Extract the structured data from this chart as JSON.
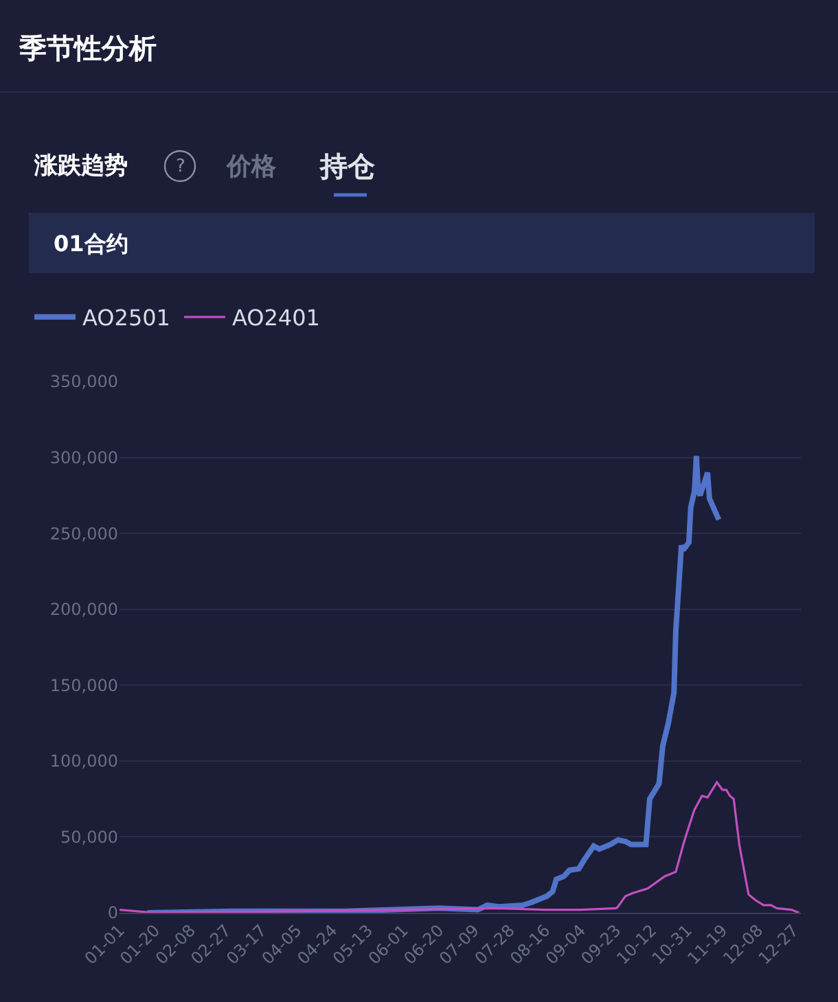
{
  "chart_data": {
    "type": "line",
    "title": "季节性分析",
    "annotations": [
      "涨跌趋势",
      "?",
      "价格",
      "持仓",
      "01合约"
    ],
    "xlim": [
      "--01-01",
      "--12-31"
    ],
    "xticks": [
      {
        "value": "--01-01",
        "label": "01-01"
      },
      {
        "value": "--01-20",
        "label": "01-20"
      },
      {
        "value": "--02-08",
        "label": "02-08"
      },
      {
        "value": "--02-27",
        "label": "02-27"
      },
      {
        "value": "--03-17",
        "label": "03-17"
      },
      {
        "value": "--04-05",
        "label": "04-05"
      },
      {
        "value": "--04-24",
        "label": "04-24"
      },
      {
        "value": "--05-13",
        "label": "05-13"
      },
      {
        "value": "--06-01",
        "label": "06-01"
      },
      {
        "value": "--06-20",
        "label": "06-20"
      },
      {
        "value": "--07-09",
        "label": "07-09"
      },
      {
        "value": "--07-28",
        "label": "07-28"
      },
      {
        "value": "--08-16",
        "label": "08-16"
      },
      {
        "value": "--09-04",
        "label": "09-04"
      },
      {
        "value": "--09-23",
        "label": "09-23"
      },
      {
        "value": "--10-12",
        "label": "10-12"
      },
      {
        "value": "--10-31",
        "label": "10-31"
      },
      {
        "value": "--11-19",
        "label": "11-19"
      },
      {
        "value": "--12-08",
        "label": "12-08"
      },
      {
        "value": "--12-27",
        "label": "12-27"
      }
    ],
    "ylim": [
      0,
      350000
    ],
    "yticks": [
      {
        "value": 0,
        "label": "0"
      },
      {
        "value": 50000,
        "label": "50,000"
      },
      {
        "value": 100000,
        "label": "100,000"
      },
      {
        "value": 150000,
        "label": "150,000"
      },
      {
        "value": 200000,
        "label": "200,000"
      },
      {
        "value": 250000,
        "label": "250,000"
      },
      {
        "value": 300000,
        "label": "300,000"
      },
      {
        "value": 350000,
        "label": "350,000"
      }
    ],
    "grid": "y",
    "legend": "top left",
    "marker": "none",
    "line_style": "solid",
    "series": [
      {
        "name": "AO2501",
        "color": "#5173c9",
        "x": [
          "--01-16",
          "--03-01",
          "--05-01",
          "--06-20",
          "--07-11",
          "--07-16",
          "--07-22",
          "--08-04",
          "--08-09",
          "--08-17",
          "--08-20",
          "--08-22",
          "--08-26",
          "--08-29",
          "--09-03",
          "--09-06",
          "--09-11",
          "--09-14",
          "--09-20",
          "--09-24",
          "--09-28",
          "--10-01",
          "--10-09",
          "--10-11",
          "--10-16",
          "--10-18",
          "--10-21",
          "--10-24",
          "--10-25",
          "--10-28",
          "--10-29",
          "--11-01",
          "--11-02",
          "--11-04",
          "--11-05",
          "--11-06",
          "--11-07",
          "--11-11",
          "--11-12",
          "--11-17"
        ],
        "values": [
          0,
          1000,
          1000,
          3000,
          2000,
          5000,
          4000,
          5000,
          7000,
          11000,
          14000,
          22000,
          24000,
          28000,
          29000,
          35000,
          44000,
          42000,
          45000,
          48000,
          47000,
          45000,
          45000,
          75000,
          85000,
          110000,
          125000,
          145000,
          186000,
          242000,
          239000,
          244000,
          267000,
          278000,
          301000,
          278000,
          275000,
          290000,
          273000,
          259000
        ]
      },
      {
        "name": "AO2401",
        "color": "#c24fc0",
        "x": [
          "--01-01",
          "--01-20",
          "--04-01",
          "--06-01",
          "--07-20",
          "--08-16",
          "--09-04",
          "--09-23",
          "--09-24",
          "--09-28",
          "--10-02",
          "--10-10",
          "--10-19",
          "--10-25",
          "--10-29",
          "--10-31",
          "--11-04",
          "--11-08",
          "--11-11",
          "--11-16",
          "--11-19",
          "--11-21",
          "--11-23",
          "--11-25",
          "--11-28",
          "--12-01",
          "--12-03",
          "--12-07",
          "--12-11",
          "--12-15",
          "--12-18",
          "--12-26",
          "--12-30"
        ],
        "values": [
          2000,
          0,
          1000,
          2000,
          3000,
          2000,
          2000,
          3000,
          4000,
          11000,
          13000,
          16000,
          24000,
          27000,
          45000,
          53000,
          68000,
          77000,
          76000,
          86000,
          81000,
          81000,
          77000,
          75000,
          45000,
          25000,
          12000,
          8000,
          5000,
          5000,
          3000,
          2000,
          0
        ]
      }
    ]
  }
}
